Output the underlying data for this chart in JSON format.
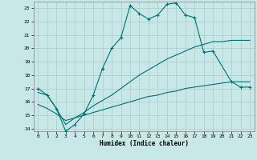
{
  "xlabel": "Humidex (Indice chaleur)",
  "bg_color": "#c8e8e8",
  "grid_color": "#a8cccc",
  "line_color": "#007070",
  "xlim": [
    -0.5,
    23.5
  ],
  "ylim": [
    13.8,
    23.5
  ],
  "yticks": [
    14,
    15,
    16,
    17,
    18,
    19,
    20,
    21,
    22,
    23
  ],
  "xticks": [
    0,
    1,
    2,
    3,
    4,
    5,
    6,
    7,
    8,
    9,
    10,
    11,
    12,
    13,
    14,
    15,
    16,
    17,
    18,
    19,
    20,
    21,
    22,
    23
  ],
  "line1_x": [
    0,
    1,
    2,
    3,
    4,
    5,
    6,
    7,
    8,
    9,
    10,
    11,
    12,
    13,
    14,
    15,
    16,
    17,
    18,
    19,
    21,
    22,
    23
  ],
  "line1_y": [
    17.0,
    16.5,
    15.5,
    13.8,
    14.3,
    15.1,
    16.5,
    18.5,
    20.0,
    20.8,
    23.2,
    22.6,
    22.2,
    22.5,
    23.3,
    23.4,
    22.5,
    22.3,
    19.7,
    19.8,
    17.5,
    17.1,
    17.1
  ],
  "line2_x": [
    0,
    1,
    2,
    3,
    4,
    5,
    6,
    7,
    8,
    9,
    10,
    11,
    12,
    13,
    14,
    15,
    16,
    17,
    18,
    19,
    20,
    21,
    22,
    23
  ],
  "line2_y": [
    16.7,
    16.5,
    15.5,
    14.3,
    14.8,
    15.2,
    15.7,
    16.1,
    16.5,
    17.0,
    17.5,
    18.0,
    18.4,
    18.8,
    19.2,
    19.5,
    19.8,
    20.1,
    20.3,
    20.5,
    20.5,
    20.6,
    20.6,
    20.6
  ],
  "line3_x": [
    0,
    1,
    2,
    3,
    4,
    5,
    6,
    7,
    8,
    9,
    10,
    11,
    12,
    13,
    14,
    15,
    16,
    17,
    18,
    19,
    20,
    21,
    22,
    23
  ],
  "line3_y": [
    15.8,
    15.5,
    15.1,
    14.6,
    14.8,
    15.0,
    15.2,
    15.4,
    15.6,
    15.8,
    16.0,
    16.2,
    16.4,
    16.5,
    16.7,
    16.8,
    17.0,
    17.1,
    17.2,
    17.3,
    17.4,
    17.5,
    17.5,
    17.5
  ]
}
